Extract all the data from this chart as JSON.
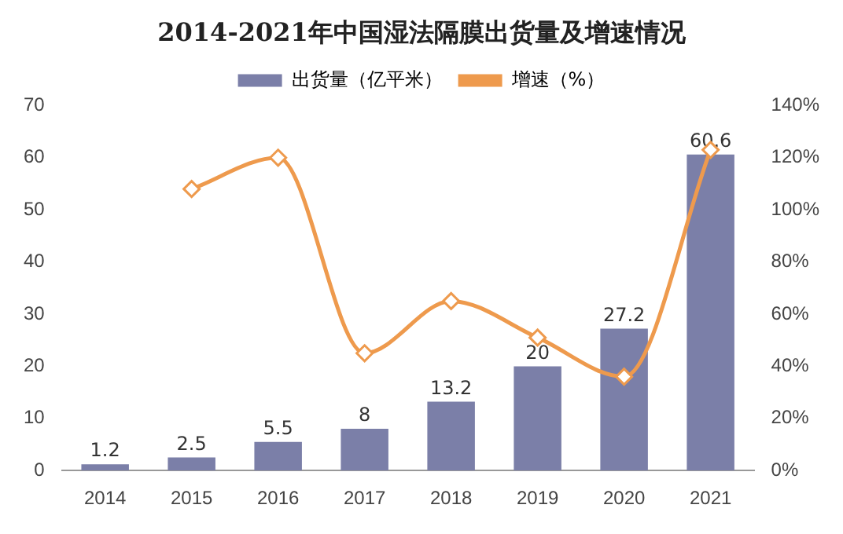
{
  "chart_data": {
    "type": "bar",
    "title": "2014-2021年中国湿法隔膜出货量及增速情况",
    "categories": [
      "2014",
      "2015",
      "2016",
      "2017",
      "2018",
      "2019",
      "2020",
      "2021"
    ],
    "series": [
      {
        "name": "出货量（亿平米）",
        "color": "#7b7fa8",
        "values": [
          1.2,
          2.5,
          5.5,
          8,
          13.2,
          20,
          27.2,
          60.6
        ],
        "value_labels": [
          "1.2",
          "2.5",
          "5.5",
          "8",
          "13.2",
          "20",
          "27.2",
          "60.6"
        ]
      },
      {
        "name": "增速（%）",
        "type": "line",
        "axis": "y2",
        "color": "#ee9a4d",
        "values": [
          null,
          108,
          120,
          45,
          65,
          51,
          36,
          123
        ]
      }
    ],
    "ylim": [
      0,
      70
    ],
    "yticks": [
      0,
      10,
      20,
      30,
      40,
      50,
      60,
      70
    ],
    "y2lim": [
      0,
      140
    ],
    "y2ticks": [
      {
        "value": 0,
        "label": "0%"
      },
      {
        "value": 20,
        "label": "20%"
      },
      {
        "value": 40,
        "label": "40%"
      },
      {
        "value": 60,
        "label": "60%"
      },
      {
        "value": 80,
        "label": "80%"
      },
      {
        "value": 100,
        "label": "100%"
      },
      {
        "value": 120,
        "label": "120%"
      },
      {
        "value": 140,
        "label": "140%"
      }
    ],
    "legend": "top",
    "grid": false,
    "marker": "diamond",
    "line_style": "solid"
  }
}
